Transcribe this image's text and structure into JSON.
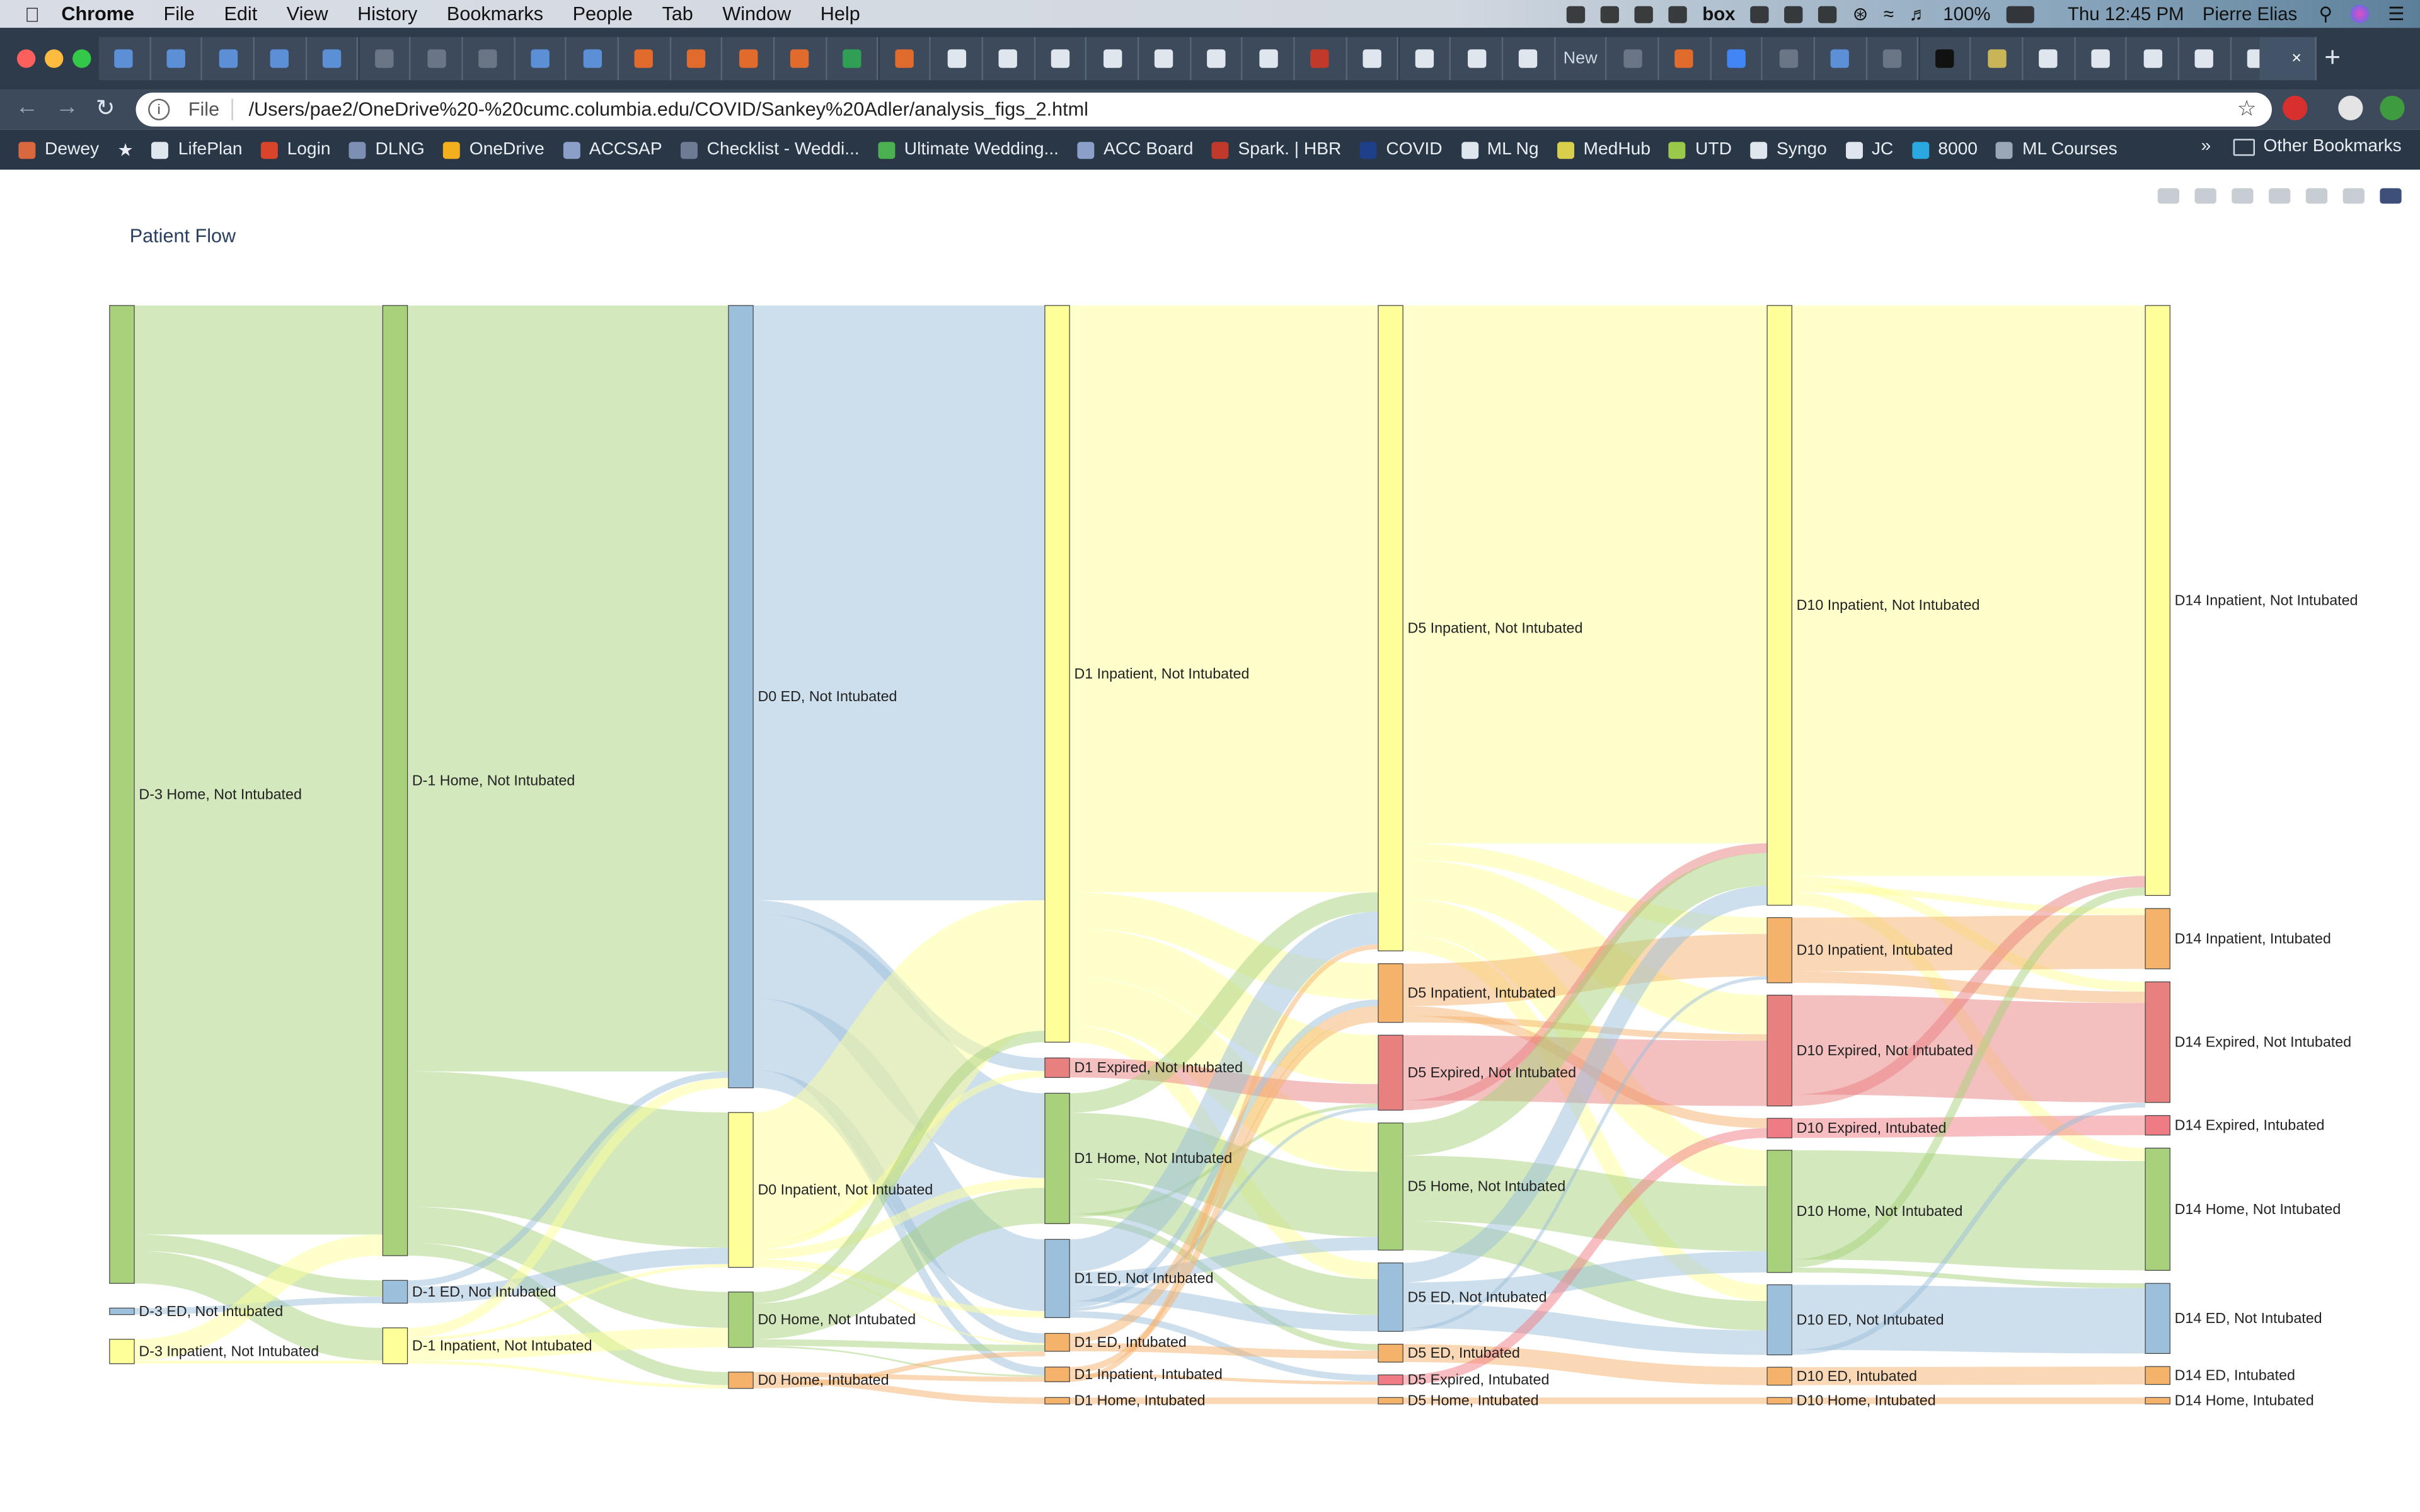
{
  "menubar": {
    "app": "Chrome",
    "items": [
      "File",
      "Edit",
      "View",
      "History",
      "Bookmarks",
      "People",
      "Tab",
      "Window",
      "Help"
    ],
    "battery": "100%",
    "clock": "Thu 12:45 PM",
    "user": "Pierre Elias"
  },
  "tabs": {
    "new_tab_label": "New",
    "active_close": "×"
  },
  "toolbar": {
    "scheme_label": "File",
    "url": "/Users/pae2/OneDrive%20-%20cumc.columbia.edu/COVID/Sankey%20Adler/analysis_figs_2.html"
  },
  "bookmarks": {
    "items": [
      {
        "label": "Dewey",
        "color": "#d9683f"
      },
      {
        "label": "LifePlan",
        "color": "#dfe6ee"
      },
      {
        "label": "Login",
        "color": "#d8452b"
      },
      {
        "label": "DLNG",
        "color": "#7d8fb3"
      },
      {
        "label": "OneDrive",
        "color": "#f2b01e"
      },
      {
        "label": "ACCSAP",
        "color": "#8aa0c8"
      },
      {
        "label": "Checklist - Weddi...",
        "color": "#6d7c92"
      },
      {
        "label": "Ultimate Wedding...",
        "color": "#4caf50"
      },
      {
        "label": "ACC Board",
        "color": "#8aa0c8"
      },
      {
        "label": "Spark. | HBR",
        "color": "#c0392b"
      },
      {
        "label": "COVID",
        "color": "#1f3f8a"
      },
      {
        "label": "ML Ng",
        "color": "#dfe6ee"
      },
      {
        "label": "MedHub",
        "color": "#d8d04a"
      },
      {
        "label": "UTD",
        "color": "#9ac84a"
      },
      {
        "label": "Syngo",
        "color": "#dfe6ee"
      },
      {
        "label": "JC",
        "color": "#dfe6ee"
      },
      {
        "label": "8000",
        "color": "#2aa9e0"
      },
      {
        "label": "ML Courses",
        "color": "#9aa7b6"
      }
    ],
    "overflow": "»",
    "other": "Other Bookmarks"
  },
  "chart_data": {
    "type": "sankey",
    "title": "Patient Flow",
    "colors": {
      "home_not_intubated": "#a8d17c",
      "ed_not_intubated": "#9cc0dc",
      "inpatient_not_intubated": "#ffff99",
      "intubated": "#f5b26b",
      "expired_not_intubated": "#e98080",
      "expired_intubated": "#ef7c84"
    },
    "nodes": [
      {
        "id": "dm3_home",
        "label": "D-3 Home, Not Intubated",
        "col": 0,
        "value": 600,
        "color": "#a8d17c"
      },
      {
        "id": "dm3_ed",
        "label": "D-3 ED, Not Intubated",
        "col": 0,
        "value": 4,
        "color": "#9cc0dc"
      },
      {
        "id": "dm3_inp",
        "label": "D-3 Inpatient, Not Intubated",
        "col": 0,
        "value": 15,
        "color": "#ffff99"
      },
      {
        "id": "dm1_home",
        "label": "D-1 Home, Not Intubated",
        "col": 1,
        "value": 583,
        "color": "#a8d17c"
      },
      {
        "id": "dm1_ed",
        "label": "D-1 ED, Not Intubated",
        "col": 1,
        "value": 14,
        "color": "#9cc0dc"
      },
      {
        "id": "dm1_inp",
        "label": "D-1 Inpatient, Not Intubated",
        "col": 1,
        "value": 22,
        "color": "#ffff99"
      },
      {
        "id": "d0_ed",
        "label": "D0 ED, Not Intubated",
        "col": 2,
        "value": 480,
        "color": "#9cc0dc"
      },
      {
        "id": "d0_inp",
        "label": "D0 Inpatient, Not Intubated",
        "col": 2,
        "value": 95,
        "color": "#ffff99"
      },
      {
        "id": "d0_home",
        "label": "D0 Home, Not Intubated",
        "col": 2,
        "value": 34,
        "color": "#a8d17c"
      },
      {
        "id": "d0_home_int",
        "label": "D0 Home, Intubated",
        "col": 2,
        "value": 10,
        "color": "#f5b26b"
      },
      {
        "id": "d1_inp",
        "label": "D1 Inpatient, Not Intubated",
        "col": 3,
        "value": 452,
        "color": "#ffff99"
      },
      {
        "id": "d1_exp",
        "label": "D1 Expired, Not Intubated",
        "col": 3,
        "value": 12,
        "color": "#e98080"
      },
      {
        "id": "d1_home",
        "label": "D1 Home, Not Intubated",
        "col": 3,
        "value": 80,
        "color": "#a8d17c"
      },
      {
        "id": "d1_ed",
        "label": "D1 ED, Not Intubated",
        "col": 3,
        "value": 48,
        "color": "#9cc0dc"
      },
      {
        "id": "d1_ed_int",
        "label": "D1 ED, Intubated",
        "col": 3,
        "value": 11,
        "color": "#f5b26b"
      },
      {
        "id": "d1_inp_int",
        "label": "D1 Inpatient, Intubated",
        "col": 3,
        "value": 9,
        "color": "#f5b26b"
      },
      {
        "id": "d1_home_int",
        "label": "D1 Home, Intubated",
        "col": 3,
        "value": 4,
        "color": "#f5b26b"
      },
      {
        "id": "d5_inp",
        "label": "D5 Inpatient, Not Intubated",
        "col": 4,
        "value": 396,
        "color": "#ffff99"
      },
      {
        "id": "d5_inp_int",
        "label": "D5 Inpatient, Intubated",
        "col": 4,
        "value": 36,
        "color": "#f5b26b"
      },
      {
        "id": "d5_exp",
        "label": "D5 Expired, Not Intubated",
        "col": 4,
        "value": 46,
        "color": "#e98080"
      },
      {
        "id": "d5_home",
        "label": "D5 Home, Not Intubated",
        "col": 4,
        "value": 78,
        "color": "#a8d17c"
      },
      {
        "id": "d5_ed",
        "label": "D5 ED, Not Intubated",
        "col": 4,
        "value": 42,
        "color": "#9cc0dc"
      },
      {
        "id": "d5_ed_int",
        "label": "D5 ED, Intubated",
        "col": 4,
        "value": 11,
        "color": "#f5b26b"
      },
      {
        "id": "d5_exp_int",
        "label": "D5 Expired, Intubated",
        "col": 4,
        "value": 6,
        "color": "#ef7c84"
      },
      {
        "id": "d5_home_int",
        "label": "D5 Home, Intubated",
        "col": 4,
        "value": 4,
        "color": "#f5b26b"
      },
      {
        "id": "d10_inp",
        "label": "D10 Inpatient, Not Intubated",
        "col": 5,
        "value": 368,
        "color": "#ffff99"
      },
      {
        "id": "d10_inp_int",
        "label": "D10 Inpatient, Intubated",
        "col": 5,
        "value": 40,
        "color": "#f5b26b"
      },
      {
        "id": "d10_exp",
        "label": "D10 Expired, Not Intubated",
        "col": 5,
        "value": 68,
        "color": "#e98080"
      },
      {
        "id": "d10_exp_int",
        "label": "D10 Expired, Intubated",
        "col": 5,
        "value": 12,
        "color": "#ef7c84"
      },
      {
        "id": "d10_home",
        "label": "D10 Home, Not Intubated",
        "col": 5,
        "value": 75,
        "color": "#a8d17c"
      },
      {
        "id": "d10_ed",
        "label": "D10 ED, Not Intubated",
        "col": 5,
        "value": 43,
        "color": "#9cc0dc"
      },
      {
        "id": "d10_ed_int",
        "label": "D10 ED, Intubated",
        "col": 5,
        "value": 11,
        "color": "#f5b26b"
      },
      {
        "id": "d10_home_int",
        "label": "D10 Home, Intubated",
        "col": 5,
        "value": 4,
        "color": "#f5b26b"
      },
      {
        "id": "d14_inp",
        "label": "D14 Inpatient, Not Intubated",
        "col": 6,
        "value": 362,
        "color": "#ffff99"
      },
      {
        "id": "d14_inp_int",
        "label": "D14 Inpatient, Intubated",
        "col": 6,
        "value": 37,
        "color": "#f5b26b"
      },
      {
        "id": "d14_exp",
        "label": "D14 Expired, Not Intubated",
        "col": 6,
        "value": 74,
        "color": "#e98080"
      },
      {
        "id": "d14_exp_int",
        "label": "D14 Expired, Intubated",
        "col": 6,
        "value": 12,
        "color": "#ef7c84"
      },
      {
        "id": "d14_home",
        "label": "D14 Home, Not Intubated",
        "col": 6,
        "value": 75,
        "color": "#a8d17c"
      },
      {
        "id": "d14_ed",
        "label": "D14 ED, Not Intubated",
        "col": 6,
        "value": 43,
        "color": "#9cc0dc"
      },
      {
        "id": "d14_ed_int",
        "label": "D14 ED, Intubated",
        "col": 6,
        "value": 11,
        "color": "#f5b26b"
      },
      {
        "id": "d14_home_int",
        "label": "D14 Home, Intubated",
        "col": 6,
        "value": 4,
        "color": "#f5b26b"
      }
    ],
    "links": [
      {
        "source": "dm3_home",
        "target": "dm1_home",
        "value": 570
      },
      {
        "source": "dm3_home",
        "target": "dm1_ed",
        "value": 10
      },
      {
        "source": "dm3_home",
        "target": "dm1_inp",
        "value": 20
      },
      {
        "source": "dm3_ed",
        "target": "dm1_ed",
        "value": 4
      },
      {
        "source": "dm3_inp",
        "target": "dm1_home",
        "value": 13
      },
      {
        "source": "dm3_inp",
        "target": "dm1_inp",
        "value": 2
      },
      {
        "source": "dm1_home",
        "target": "d0_ed",
        "value": 470
      },
      {
        "source": "dm1_home",
        "target": "d0_inp",
        "value": 83
      },
      {
        "source": "dm1_home",
        "target": "d0_home",
        "value": 22
      },
      {
        "source": "dm1_home",
        "target": "d0_home_int",
        "value": 8
      },
      {
        "source": "dm1_ed",
        "target": "d0_ed",
        "value": 4
      },
      {
        "source": "dm1_ed",
        "target": "d0_inp",
        "value": 10
      },
      {
        "source": "dm1_inp",
        "target": "d0_ed",
        "value": 6
      },
      {
        "source": "dm1_inp",
        "target": "d0_inp",
        "value": 2
      },
      {
        "source": "dm1_inp",
        "target": "d0_home",
        "value": 12
      },
      {
        "source": "dm1_inp",
        "target": "d0_home_int",
        "value": 2
      },
      {
        "source": "d0_ed",
        "target": "d1_inp",
        "value": 365
      },
      {
        "source": "d0_ed",
        "target": "d1_exp",
        "value": 8
      },
      {
        "source": "d0_ed",
        "target": "d1_home",
        "value": 52
      },
      {
        "source": "d0_ed",
        "target": "d1_ed",
        "value": 44
      },
      {
        "source": "d0_ed",
        "target": "d1_ed_int",
        "value": 6
      },
      {
        "source": "d0_ed",
        "target": "d1_inp_int",
        "value": 5
      },
      {
        "source": "d0_inp",
        "target": "d1_inp",
        "value": 80
      },
      {
        "source": "d0_inp",
        "target": "d1_exp",
        "value": 4
      },
      {
        "source": "d0_inp",
        "target": "d1_home",
        "value": 6
      },
      {
        "source": "d0_inp",
        "target": "d1_ed",
        "value": 4
      },
      {
        "source": "d0_inp",
        "target": "d1_ed_int",
        "value": 1
      },
      {
        "source": "d0_home",
        "target": "d1_inp",
        "value": 7
      },
      {
        "source": "d0_home",
        "target": "d1_home",
        "value": 22
      },
      {
        "source": "d0_home",
        "target": "d1_ed_int",
        "value": 4
      },
      {
        "source": "d0_home",
        "target": "d1_inp_int",
        "value": 1
      },
      {
        "source": "d0_home_int",
        "target": "d1_inp_int",
        "value": 3
      },
      {
        "source": "d0_home_int",
        "target": "d1_home_int",
        "value": 4
      },
      {
        "source": "d0_home_int",
        "target": "d1_ed_int",
        "value": 3
      },
      {
        "source": "d1_inp",
        "target": "d5_inp",
        "value": 360
      },
      {
        "source": "d1_inp",
        "target": "d5_inp_int",
        "value": 22
      },
      {
        "source": "d1_inp",
        "target": "d5_exp",
        "value": 30
      },
      {
        "source": "d1_inp",
        "target": "d5_home",
        "value": 30
      },
      {
        "source": "d1_inp",
        "target": "d5_ed",
        "value": 10
      },
      {
        "source": "d1_exp",
        "target": "d5_exp",
        "value": 12
      },
      {
        "source": "d1_home",
        "target": "d5_inp",
        "value": 12
      },
      {
        "source": "d1_home",
        "target": "d5_home",
        "value": 40
      },
      {
        "source": "d1_home",
        "target": "d5_ed",
        "value": 22
      },
      {
        "source": "d1_home",
        "target": "d5_exp",
        "value": 2
      },
      {
        "source": "d1_home",
        "target": "d5_ed_int",
        "value": 4
      },
      {
        "source": "d1_ed",
        "target": "d5_inp",
        "value": 20
      },
      {
        "source": "d1_ed",
        "target": "d5_home",
        "value": 8
      },
      {
        "source": "d1_ed",
        "target": "d5_ed",
        "value": 10
      },
      {
        "source": "d1_ed",
        "target": "d5_inp_int",
        "value": 4
      },
      {
        "source": "d1_ed",
        "target": "d5_exp",
        "value": 2
      },
      {
        "source": "d1_ed",
        "target": "d5_exp_int",
        "value": 4
      },
      {
        "source": "d1_ed_int",
        "target": "d5_inp_int",
        "value": 6
      },
      {
        "source": "d1_ed_int",
        "target": "d5_ed_int",
        "value": 5
      },
      {
        "source": "d1_inp_int",
        "target": "d5_inp_int",
        "value": 4
      },
      {
        "source": "d1_inp_int",
        "target": "d5_exp_int",
        "value": 2
      },
      {
        "source": "d1_inp_int",
        "target": "d5_inp",
        "value": 3
      },
      {
        "source": "d1_home_int",
        "target": "d5_home_int",
        "value": 4
      },
      {
        "source": "d5_inp",
        "target": "d10_inp",
        "value": 330
      },
      {
        "source": "d5_inp",
        "target": "d10_inp_int",
        "value": 10
      },
      {
        "source": "d5_inp",
        "target": "d10_exp",
        "value": 24
      },
      {
        "source": "d5_inp",
        "target": "d10_home",
        "value": 22
      },
      {
        "source": "d5_inp",
        "target": "d10_ed",
        "value": 10
      },
      {
        "source": "d5_inp_int",
        "target": "d10_inp_int",
        "value": 26
      },
      {
        "source": "d5_inp_int",
        "target": "d10_exp_int",
        "value": 6
      },
      {
        "source": "d5_inp_int",
        "target": "d10_exp",
        "value": 4
      },
      {
        "source": "d5_exp",
        "target": "d10_exp",
        "value": 40
      },
      {
        "source": "d5_exp",
        "target": "d10_inp",
        "value": 6
      },
      {
        "source": "d5_home",
        "target": "d10_inp",
        "value": 20
      },
      {
        "source": "d5_home",
        "target": "d10_home",
        "value": 40
      },
      {
        "source": "d5_home",
        "target": "d10_ed",
        "value": 18
      },
      {
        "source": "d5_ed",
        "target": "d10_inp",
        "value": 12
      },
      {
        "source": "d5_ed",
        "target": "d10_home",
        "value": 13
      },
      {
        "source": "d5_ed",
        "target": "d10_ed",
        "value": 15
      },
      {
        "source": "d5_ed",
        "target": "d10_inp_int",
        "value": 2
      },
      {
        "source": "d5_ed_int",
        "target": "d10_ed_int",
        "value": 11
      },
      {
        "source": "d5_exp_int",
        "target": "d10_exp_int",
        "value": 6
      },
      {
        "source": "d5_home_int",
        "target": "d10_home_int",
        "value": 4
      },
      {
        "source": "d10_inp",
        "target": "d14_inp",
        "value": 350
      },
      {
        "source": "d10_inp",
        "target": "d14_exp",
        "value": 6
      },
      {
        "source": "d10_inp",
        "target": "d14_inp_int",
        "value": 4
      },
      {
        "source": "d10_inp",
        "target": "d14_home",
        "value": 8
      },
      {
        "source": "d10_inp_int",
        "target": "d14_inp_int",
        "value": 33
      },
      {
        "source": "d10_inp_int",
        "target": "d14_exp",
        "value": 7
      },
      {
        "source": "d10_exp",
        "target": "d14_exp",
        "value": 61
      },
      {
        "source": "d10_exp",
        "target": "d14_inp",
        "value": 7
      },
      {
        "source": "d10_exp_int",
        "target": "d14_exp_int",
        "value": 12
      },
      {
        "source": "d10_home",
        "target": "d14_home",
        "value": 67
      },
      {
        "source": "d10_home",
        "target": "d14_inp",
        "value": 5
      },
      {
        "source": "d10_home",
        "target": "d14_ed",
        "value": 3
      },
      {
        "source": "d10_ed",
        "target": "d14_ed",
        "value": 40
      },
      {
        "source": "d10_ed",
        "target": "d14_exp",
        "value": 3
      },
      {
        "source": "d10_ed_int",
        "target": "d14_ed_int",
        "value": 11
      },
      {
        "source": "d10_home_int",
        "target": "d14_home_int",
        "value": 4
      }
    ]
  }
}
